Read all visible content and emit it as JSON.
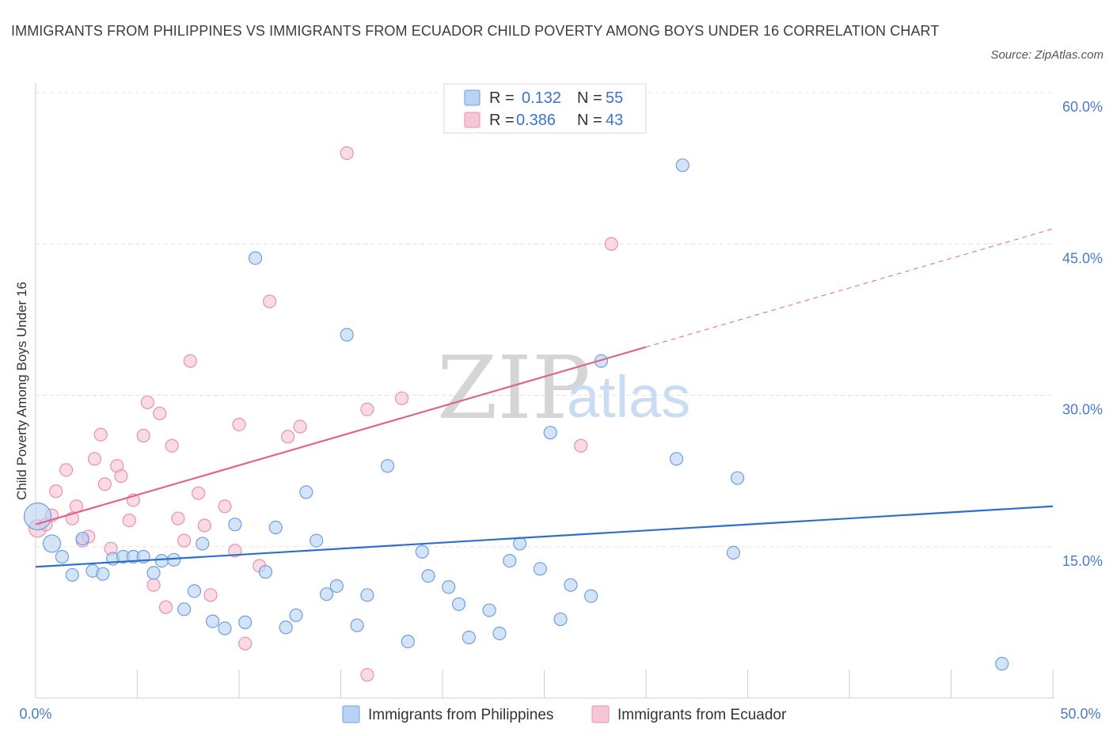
{
  "title": "IMMIGRANTS FROM PHILIPPINES VS IMMIGRANTS FROM ECUADOR CHILD POVERTY AMONG BOYS UNDER 16 CORRELATION CHART",
  "source": "Source: ZipAtlas.com",
  "watermark": {
    "zip": "ZIP",
    "atlas": "atlas"
  },
  "colors": {
    "philippines_fill": "#b8d3f3",
    "philippines_stroke": "#6f9fde",
    "philippines_line": "#2e6fcc",
    "ecuador_fill": "#f7c5d3",
    "ecuador_stroke": "#e692ad",
    "ecuador_line": "#e0658e",
    "grid": "#e3e3e3",
    "tick_label": "#4a7cc4"
  },
  "legend": {
    "rows": [
      {
        "r_label": "R =",
        "r_value": "0.132",
        "n_label": "N =",
        "n_value": "55"
      },
      {
        "r_label": "R =",
        "r_value": "0.386",
        "n_label": "N =",
        "n_value": "43"
      }
    ]
  },
  "chart_data": {
    "type": "scatter",
    "title": "IMMIGRANTS FROM PHILIPPINES VS IMMIGRANTS FROM ECUADOR CHILD POVERTY AMONG BOYS UNDER 16 CORRELATION CHART",
    "xlabel": "",
    "ylabel": "Child Poverty Among Boys Under 16",
    "xlim": [
      0,
      50
    ],
    "ylim": [
      0,
      60
    ],
    "x_tick_labels": [
      "0.0%",
      "50.0%"
    ],
    "y_ticks": [
      15,
      30,
      45,
      60
    ],
    "y_tick_labels": [
      "15.0%",
      "30.0%",
      "45.0%",
      "60.0%"
    ],
    "grid": "horizontal dashed",
    "legend_position": "top-center",
    "series": [
      {
        "name": "Immigrants from Philippines",
        "color": "#b8d3f3",
        "r": 0.132,
        "n": 55,
        "trend": {
          "x": [
            0,
            50
          ],
          "y": [
            13.0,
            19.0
          ],
          "dashed_from_x": null
        },
        "points": [
          [
            0.1,
            18.0,
            "big"
          ],
          [
            0.8,
            15.3,
            "mid"
          ],
          [
            1.3,
            14.0
          ],
          [
            1.8,
            12.2
          ],
          [
            2.3,
            15.8
          ],
          [
            2.8,
            12.6
          ],
          [
            3.3,
            12.3
          ],
          [
            3.8,
            13.8
          ],
          [
            4.3,
            14.0
          ],
          [
            4.8,
            14.0
          ],
          [
            5.3,
            14.0
          ],
          [
            5.8,
            12.4
          ],
          [
            6.2,
            13.6
          ],
          [
            6.8,
            13.7
          ],
          [
            7.3,
            8.8
          ],
          [
            7.8,
            10.6
          ],
          [
            8.2,
            15.3
          ],
          [
            8.7,
            7.6
          ],
          [
            9.3,
            6.9
          ],
          [
            9.8,
            17.2
          ],
          [
            10.3,
            7.5
          ],
          [
            10.8,
            43.6
          ],
          [
            11.3,
            12.5
          ],
          [
            11.8,
            16.9
          ],
          [
            12.3,
            7.0
          ],
          [
            12.8,
            8.2
          ],
          [
            13.3,
            20.4
          ],
          [
            13.8,
            15.6
          ],
          [
            14.3,
            10.3
          ],
          [
            14.8,
            11.1
          ],
          [
            15.3,
            36.0
          ],
          [
            15.8,
            7.2
          ],
          [
            16.3,
            10.2
          ],
          [
            17.3,
            23.0
          ],
          [
            18.3,
            5.6
          ],
          [
            19.0,
            14.5
          ],
          [
            19.3,
            12.1
          ],
          [
            20.3,
            11.0
          ],
          [
            20.8,
            9.3
          ],
          [
            21.3,
            6.0
          ],
          [
            22.3,
            8.7
          ],
          [
            22.8,
            6.4
          ],
          [
            23.3,
            13.6
          ],
          [
            23.8,
            15.3
          ],
          [
            24.8,
            12.8
          ],
          [
            25.3,
            26.3
          ],
          [
            25.8,
            7.8
          ],
          [
            26.3,
            11.2
          ],
          [
            27.3,
            10.1
          ],
          [
            27.8,
            33.4
          ],
          [
            31.5,
            23.7
          ],
          [
            31.8,
            52.8
          ],
          [
            34.3,
            14.4
          ],
          [
            34.5,
            21.8
          ],
          [
            47.5,
            3.4
          ]
        ]
      },
      {
        "name": "Immigrants from Ecuador",
        "color": "#f7c5d3",
        "r": 0.386,
        "n": 43,
        "trend": {
          "x": [
            0,
            50
          ],
          "y": [
            17.2,
            46.5
          ],
          "dashed_from_x": 30
        },
        "points": [
          [
            0.1,
            16.8,
            "mid"
          ],
          [
            0.5,
            17.2
          ],
          [
            0.8,
            18.1
          ],
          [
            1.0,
            20.5
          ],
          [
            1.5,
            22.6
          ],
          [
            1.8,
            17.8
          ],
          [
            2.0,
            19.0
          ],
          [
            2.3,
            15.6
          ],
          [
            2.6,
            16.0
          ],
          [
            2.9,
            23.7
          ],
          [
            3.2,
            26.1
          ],
          [
            3.4,
            21.2
          ],
          [
            3.7,
            14.8
          ],
          [
            4.0,
            23.0
          ],
          [
            4.2,
            22.0
          ],
          [
            4.6,
            17.6
          ],
          [
            4.8,
            19.6
          ],
          [
            5.3,
            26.0
          ],
          [
            5.5,
            29.3
          ],
          [
            5.8,
            11.2
          ],
          [
            6.1,
            28.2
          ],
          [
            6.4,
            9.0
          ],
          [
            6.7,
            25.0
          ],
          [
            7.0,
            17.8
          ],
          [
            7.3,
            15.6
          ],
          [
            7.6,
            33.4
          ],
          [
            8.0,
            20.3
          ],
          [
            8.3,
            17.1
          ],
          [
            8.6,
            10.2
          ],
          [
            9.3,
            19.0
          ],
          [
            9.8,
            14.6
          ],
          [
            10.0,
            27.1
          ],
          [
            10.3,
            5.4
          ],
          [
            11.0,
            13.1
          ],
          [
            11.5,
            39.3
          ],
          [
            12.4,
            25.9
          ],
          [
            13.0,
            26.9
          ],
          [
            15.3,
            54.0
          ],
          [
            16.3,
            28.6
          ],
          [
            16.3,
            2.3
          ],
          [
            18.0,
            29.7
          ],
          [
            26.8,
            25.0
          ],
          [
            28.3,
            45.0
          ]
        ]
      }
    ]
  }
}
